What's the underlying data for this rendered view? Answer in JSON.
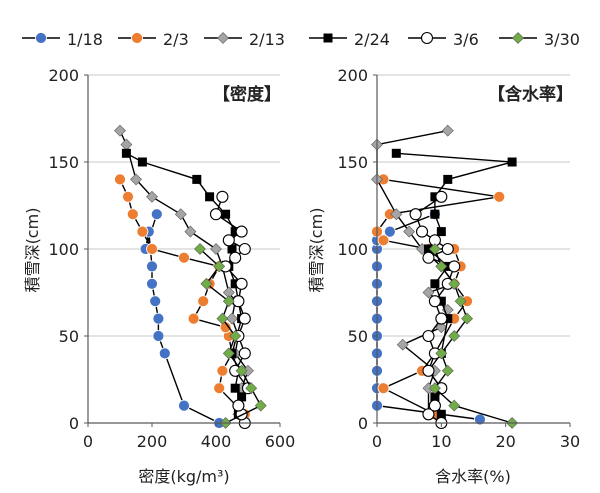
{
  "chart_data": [
    {
      "type": "line",
      "panel_label": "【密度】",
      "xlabel": "密度(kg/m³)",
      "ylabel": "積雪深(cm)",
      "xlim": [
        0,
        600
      ],
      "ylim": [
        0,
        200
      ],
      "x_ticks": [
        0,
        200,
        400,
        600
      ],
      "y_ticks": [
        0,
        50,
        100,
        150,
        200
      ],
      "grid": "horizontal",
      "series": [
        {
          "name": "1/18",
          "x": [
            410,
            300,
            240,
            220,
            220,
            210,
            200,
            200,
            195,
            190,
            180,
            215
          ],
          "y": [
            0,
            10,
            40,
            50,
            60,
            70,
            80,
            90,
            100,
            110,
            100,
            120
          ]
        },
        {
          "name": "2/3",
          "x": [
            490,
            410,
            420,
            450,
            440,
            430,
            330,
            360,
            380,
            410,
            300,
            200,
            170,
            140,
            125,
            100
          ],
          "y": [
            5,
            20,
            30,
            40,
            50,
            55,
            60,
            70,
            80,
            90,
            95,
            100,
            110,
            120,
            130,
            140
          ]
        },
        {
          "name": "2/13",
          "x": [
            470,
            480,
            500,
            460,
            470,
            450,
            460,
            440,
            420,
            400,
            320,
            290,
            200,
            150,
            120,
            100
          ],
          "y": [
            5,
            20,
            30,
            40,
            50,
            60,
            70,
            75,
            90,
            100,
            110,
            120,
            130,
            140,
            160,
            168
          ]
        },
        {
          "name": "2/24",
          "x": [
            490,
            470,
            480,
            460,
            470,
            450,
            480,
            470,
            460,
            440,
            450,
            460,
            430,
            380,
            340,
            170,
            120
          ],
          "y": [
            0,
            5,
            15,
            20,
            30,
            40,
            60,
            70,
            80,
            90,
            100,
            110,
            120,
            130,
            140,
            150,
            155
          ]
        },
        {
          "name": "3/6",
          "x": [
            490,
            480,
            470,
            500,
            460,
            490,
            470,
            490,
            470,
            480,
            430,
            460,
            490,
            440,
            480,
            400,
            420
          ],
          "y": [
            0,
            5,
            10,
            20,
            30,
            40,
            50,
            60,
            70,
            80,
            90,
            95,
            100,
            105,
            110,
            120,
            130
          ]
        },
        {
          "name": "3/30",
          "x": [
            430,
            540,
            510,
            480,
            440,
            460,
            420,
            440,
            370,
            410,
            350
          ],
          "y": [
            0,
            10,
            20,
            30,
            40,
            50,
            60,
            70,
            80,
            90,
            100
          ]
        }
      ]
    },
    {
      "type": "line",
      "panel_label": "【含水率】",
      "xlabel": "含水率(%)",
      "ylabel": "積雪深(cm)",
      "xlim": [
        0,
        30
      ],
      "ylim": [
        0,
        200
      ],
      "x_ticks": [
        0,
        10,
        20,
        30
      ],
      "y_ticks": [
        0,
        50,
        100,
        150,
        200
      ],
      "grid": "horizontal",
      "series": [
        {
          "name": "1/18",
          "x": [
            16,
            0,
            0,
            0,
            0,
            0,
            0,
            0,
            0,
            0,
            0,
            0,
            2,
            9
          ],
          "y": [
            2,
            10,
            20,
            30,
            40,
            50,
            60,
            70,
            80,
            90,
            100,
            105,
            110,
            120
          ]
        },
        {
          "name": "2/3",
          "x": [
            9,
            1,
            7,
            9,
            12,
            14,
            12,
            13,
            12,
            8,
            1,
            0,
            2,
            19,
            1
          ],
          "y": [
            5,
            20,
            30,
            40,
            60,
            70,
            80,
            90,
            100,
            100,
            105,
            110,
            120,
            130,
            140
          ]
        },
        {
          "name": "2/13",
          "x": [
            8,
            8,
            9,
            4,
            10,
            11,
            8,
            12,
            10,
            7,
            5,
            3,
            0,
            0,
            11
          ],
          "y": [
            5,
            20,
            30,
            45,
            55,
            65,
            75,
            80,
            90,
            100,
            110,
            120,
            140,
            160,
            168
          ]
        },
        {
          "name": "2/24",
          "x": [
            10,
            10,
            9,
            10,
            8,
            10,
            11,
            10,
            9,
            11,
            8,
            10,
            9,
            9,
            11,
            21,
            3
          ],
          "y": [
            0,
            5,
            15,
            20,
            30,
            40,
            60,
            70,
            80,
            90,
            100,
            110,
            120,
            130,
            140,
            150,
            155
          ]
        },
        {
          "name": "3/6",
          "x": [
            10,
            8,
            9,
            10,
            8,
            9,
            8,
            10,
            9,
            11,
            12,
            8,
            11,
            9,
            7,
            6,
            10
          ],
          "y": [
            0,
            5,
            10,
            20,
            30,
            40,
            50,
            60,
            70,
            80,
            90,
            95,
            100,
            105,
            110,
            120,
            130
          ]
        },
        {
          "name": "3/30",
          "x": [
            21,
            12,
            9,
            11,
            10,
            12,
            14,
            13,
            12,
            10,
            9
          ],
          "y": [
            0,
            10,
            20,
            30,
            40,
            50,
            60,
            70,
            80,
            90,
            100
          ]
        }
      ]
    }
  ],
  "legend": [
    {
      "name": "1/18",
      "color": "#4472c4",
      "marker": "circle",
      "fill": "#4472c4"
    },
    {
      "name": "2/3",
      "color": "#ed7d31",
      "marker": "circle",
      "fill": "#ed7d31"
    },
    {
      "name": "2/13",
      "color": "#a5a5a5",
      "marker": "diamond",
      "fill": "#a5a5a5"
    },
    {
      "name": "2/24",
      "color": "#000000",
      "marker": "square",
      "fill": "#000000"
    },
    {
      "name": "3/6",
      "color": "#ffffff",
      "marker": "circle",
      "fill": "#ffffff"
    },
    {
      "name": "3/30",
      "color": "#70ad47",
      "marker": "diamond",
      "fill": "#70ad47"
    }
  ]
}
